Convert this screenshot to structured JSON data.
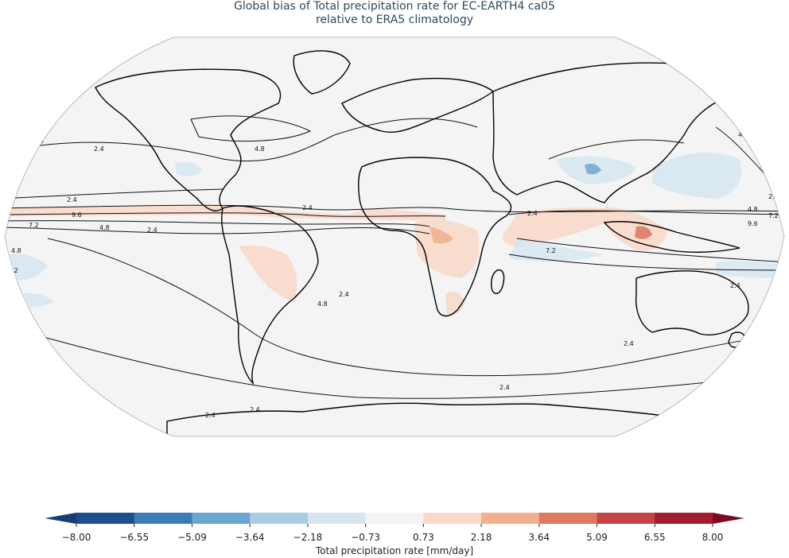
{
  "title": {
    "line1": "Global bias of Total precipitation rate for EC-EARTH4 ca05",
    "line2": "relative to ERA5 climatology"
  },
  "colorbar": {
    "label": "Total precipitation rate [mm/day]",
    "ticks": [
      "−8.00",
      "−6.55",
      "−5.09",
      "−3.64",
      "−2.18",
      "−0.73",
      "0.73",
      "2.18",
      "3.64",
      "5.09",
      "6.55",
      "8.00"
    ],
    "colors": [
      "#1f4e8c",
      "#3b7cb8",
      "#6aa6cf",
      "#a8cde2",
      "#d6e6f1",
      "#f4f4f4",
      "#f9dac9",
      "#f2af8e",
      "#de7a62",
      "#c64447",
      "#a01c2e"
    ],
    "extend_low_color": "#163e74",
    "extend_high_color": "#7a0a21"
  },
  "map": {
    "projection": "Robinson",
    "ocean_color": "#f4f4f4",
    "coastline_color": "#000000",
    "contour_levels": [
      "2.4",
      "4.8",
      "7.2",
      "9.6"
    ]
  }
}
